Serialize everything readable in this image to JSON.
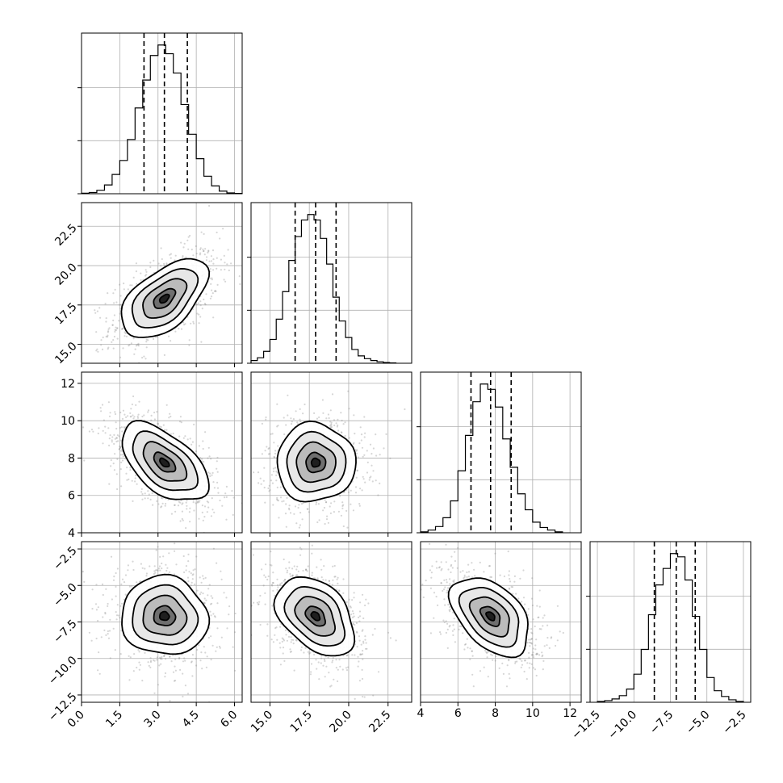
{
  "chart_data": {
    "type": "corner",
    "parameters": [
      {
        "range": [
          0,
          6.3
        ],
        "median": 3.25,
        "quantiles": [
          2.45,
          3.25,
          4.15
        ],
        "ticks": [
          0.0,
          1.5,
          3.0,
          4.5,
          6.0
        ],
        "tick_labels": [
          "0.0",
          "1.5",
          "3.0",
          "4.5",
          "6.0"
        ],
        "hist_edges": [
          0.0,
          0.3,
          0.6,
          0.9,
          1.2,
          1.5,
          1.8,
          2.1,
          2.4,
          2.7,
          3.0,
          3.3,
          3.6,
          3.9,
          4.2,
          4.5,
          4.8,
          5.1,
          5.4,
          5.7,
          6.0,
          6.3
        ],
        "hist_counts": [
          0.3,
          0.7,
          2.0,
          5.0,
          11.0,
          19.0,
          31.0,
          49.0,
          65.0,
          79.0,
          85.0,
          80.0,
          69.0,
          51.0,
          34.0,
          20.0,
          10.0,
          4.5,
          1.5,
          0.5,
          0.2
        ]
      },
      {
        "range": [
          13.8,
          24.0
        ],
        "median": 17.9,
        "quantiles": [
          16.6,
          17.9,
          19.2
        ],
        "ticks": [
          15.0,
          17.5,
          20.0,
          22.5
        ],
        "tick_labels": [
          "15.0",
          "17.5",
          "20.0",
          "22.5"
        ],
        "hist_edges": [
          13.8,
          14.2,
          14.6,
          15.0,
          15.4,
          15.8,
          16.2,
          16.6,
          17.0,
          17.4,
          17.8,
          18.2,
          18.6,
          19.0,
          19.4,
          19.8,
          20.2,
          20.6,
          21.0,
          21.4,
          21.8,
          22.2,
          22.6,
          23.0
        ],
        "hist_counts": [
          1.5,
          3.0,
          6.5,
          13.0,
          24.0,
          39.0,
          56.0,
          69.0,
          78.0,
          81.0,
          78.0,
          68.0,
          54.0,
          36.0,
          23.0,
          14.0,
          7.5,
          4.0,
          2.5,
          1.5,
          0.8,
          0.4,
          0.2
        ]
      },
      {
        "range": [
          4.0,
          12.6
        ],
        "median": 7.75,
        "quantiles": [
          6.7,
          7.75,
          8.85
        ],
        "ticks": [
          4,
          6,
          8,
          10,
          12
        ],
        "y_tick_labels": [
          "4",
          "6",
          "8",
          "10",
          "12"
        ],
        "tick_labels": [
          "4",
          "6",
          "8",
          "10",
          "12"
        ],
        "hist_edges": [
          4.0,
          4.4,
          4.8,
          5.2,
          5.6,
          6.0,
          6.4,
          6.8,
          7.2,
          7.6,
          8.0,
          8.4,
          8.8,
          9.2,
          9.6,
          10.0,
          10.4,
          10.8,
          11.2,
          11.6
        ],
        "hist_counts": [
          0.5,
          1.5,
          3.5,
          8.5,
          18.0,
          35.0,
          55.0,
          74.0,
          84.0,
          81.0,
          71.0,
          53.0,
          37.0,
          22.0,
          13.0,
          6.0,
          3.0,
          1.5,
          0.5
        ]
      },
      {
        "range": [
          -13.0,
          -2.0
        ],
        "median": -7.1,
        "quantiles": [
          -8.6,
          -7.1,
          -5.8
        ],
        "ticks": [
          -12.5,
          -10.0,
          -7.5,
          -5.0,
          -2.5
        ],
        "tick_labels": [
          "−12.5",
          "−10.0",
          "−7.5",
          "−5.0",
          "−2.5"
        ],
        "hist_edges": [
          -12.5,
          -12.0,
          -11.5,
          -11.0,
          -10.5,
          -10.0,
          -9.5,
          -9.0,
          -8.5,
          -8.0,
          -7.5,
          -7.0,
          -6.5,
          -6.0,
          -5.5,
          -5.0,
          -4.5,
          -4.0,
          -3.5,
          -3.0,
          -2.5
        ],
        "hist_counts": [
          0.5,
          1.0,
          2.0,
          4.0,
          8.0,
          17.0,
          32.0,
          53.0,
          71.0,
          81.0,
          90.0,
          88.0,
          74.0,
          52.0,
          32.0,
          15.0,
          7.0,
          3.5,
          1.5,
          0.5
        ]
      }
    ],
    "pairs": [
      {
        "row": 1,
        "col": 0,
        "center": [
          3.25,
          17.9
        ],
        "sd": [
          0.85,
          1.25
        ],
        "rho": 0.55
      },
      {
        "row": 2,
        "col": 0,
        "center": [
          3.25,
          7.75
        ],
        "sd": [
          0.85,
          1.05
        ],
        "rho": -0.55
      },
      {
        "row": 2,
        "col": 1,
        "center": [
          17.9,
          7.75
        ],
        "sd": [
          1.25,
          1.05
        ],
        "rho": 0.0
      },
      {
        "row": 3,
        "col": 0,
        "center": [
          3.25,
          -7.1
        ],
        "sd": [
          0.85,
          1.35
        ],
        "rho": -0.05
      },
      {
        "row": 3,
        "col": 1,
        "center": [
          17.9,
          -7.1
        ],
        "sd": [
          1.25,
          1.35
        ],
        "rho": -0.4
      },
      {
        "row": 3,
        "col": 2,
        "center": [
          7.75,
          -7.1
        ],
        "sd": [
          1.05,
          1.35
        ],
        "rho": -0.45
      }
    ],
    "contour_levels_sigma": [
      0.5,
      1.0,
      1.5,
      2.0
    ],
    "grid": true,
    "colors": {
      "line": "#000000",
      "grid": "#b0b0b0",
      "points": "#808080"
    }
  }
}
